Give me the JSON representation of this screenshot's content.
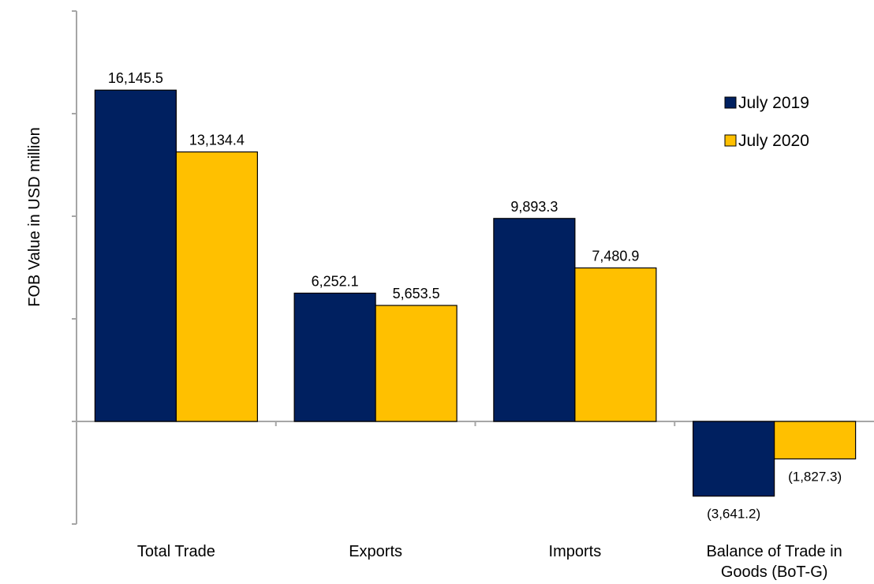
{
  "chart_data": {
    "type": "bar",
    "title": "",
    "ylabel": "FOB Value in USD million",
    "xlabel": "",
    "categories": [
      [
        "Total Trade"
      ],
      [
        "Exports"
      ],
      [
        "Imports"
      ],
      [
        "Balance of Trade in",
        "Goods (BoT-G)"
      ]
    ],
    "series": [
      {
        "name": "July 2019",
        "color": "#002060",
        "values": [
          16145.5,
          6252.1,
          9893.3,
          -3641.2
        ],
        "labels": [
          "16,145.5",
          "6,252.1",
          "9,893.3",
          "(3,641.2)"
        ]
      },
      {
        "name": "July 2020",
        "color": "#FFC000",
        "values": [
          13134.4,
          5653.5,
          7480.9,
          -1827.3
        ],
        "labels": [
          "13,134.4",
          "5,653.5",
          "7,480.9",
          "(1,827.3)"
        ]
      }
    ],
    "ylim": [
      -5000,
      20000
    ],
    "ytick_step": 5000,
    "ytick_labels_visible": false,
    "grid": false,
    "legend_position": "top-right",
    "axis_color": "#A6A6A6",
    "bar_outline_color": "#000000"
  }
}
